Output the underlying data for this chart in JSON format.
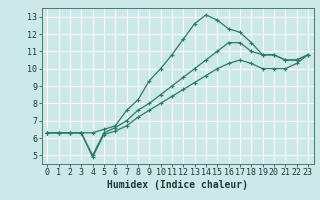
{
  "xlabel": "Humidex (Indice chaleur)",
  "background_color": "#cde8e8",
  "grid_color": "#ffffff",
  "line_color": "#2a7a6a",
  "xlim": [
    -0.5,
    23.5
  ],
  "ylim": [
    4.5,
    13.5
  ],
  "xticks": [
    0,
    1,
    2,
    3,
    4,
    5,
    6,
    7,
    8,
    9,
    10,
    11,
    12,
    13,
    14,
    15,
    16,
    17,
    18,
    19,
    20,
    21,
    22,
    23
  ],
  "yticks": [
    5,
    6,
    7,
    8,
    9,
    10,
    11,
    12,
    13
  ],
  "line1_x": [
    0,
    1,
    2,
    3,
    4,
    5,
    6,
    7,
    8,
    9,
    10,
    11,
    12,
    13,
    14,
    15,
    16,
    17,
    18,
    19,
    20,
    21,
    22,
    23
  ],
  "line1_y": [
    6.3,
    6.3,
    6.3,
    6.3,
    6.3,
    6.5,
    6.7,
    7.6,
    8.2,
    9.3,
    10.0,
    10.8,
    11.7,
    12.6,
    13.1,
    12.8,
    12.3,
    12.1,
    11.5,
    10.8,
    10.8,
    10.5,
    10.5,
    10.8
  ],
  "line2_x": [
    0,
    1,
    2,
    3,
    4,
    5,
    6,
    7,
    8,
    9,
    10,
    11,
    12,
    13,
    14,
    15,
    16,
    17,
    18,
    19,
    20,
    21,
    22,
    23
  ],
  "line2_y": [
    6.3,
    6.3,
    6.3,
    6.3,
    5.0,
    6.3,
    6.6,
    7.0,
    7.6,
    8.0,
    8.5,
    9.0,
    9.5,
    10.0,
    10.5,
    11.0,
    11.5,
    11.5,
    11.0,
    10.8,
    10.8,
    10.5,
    10.5,
    10.8
  ],
  "line3_x": [
    0,
    1,
    2,
    3,
    4,
    5,
    6,
    7,
    8,
    9,
    10,
    11,
    12,
    13,
    14,
    15,
    16,
    17,
    18,
    19,
    20,
    21,
    22,
    23
  ],
  "line3_y": [
    6.3,
    6.3,
    6.3,
    6.3,
    4.9,
    6.2,
    6.4,
    6.7,
    7.2,
    7.6,
    8.0,
    8.4,
    8.8,
    9.2,
    9.6,
    10.0,
    10.3,
    10.5,
    10.3,
    10.0,
    10.0,
    10.0,
    10.3,
    10.8
  ],
  "marker": "+",
  "markersize": 3,
  "linewidth": 0.9,
  "xlabel_fontsize": 7,
  "tick_fontsize": 6
}
